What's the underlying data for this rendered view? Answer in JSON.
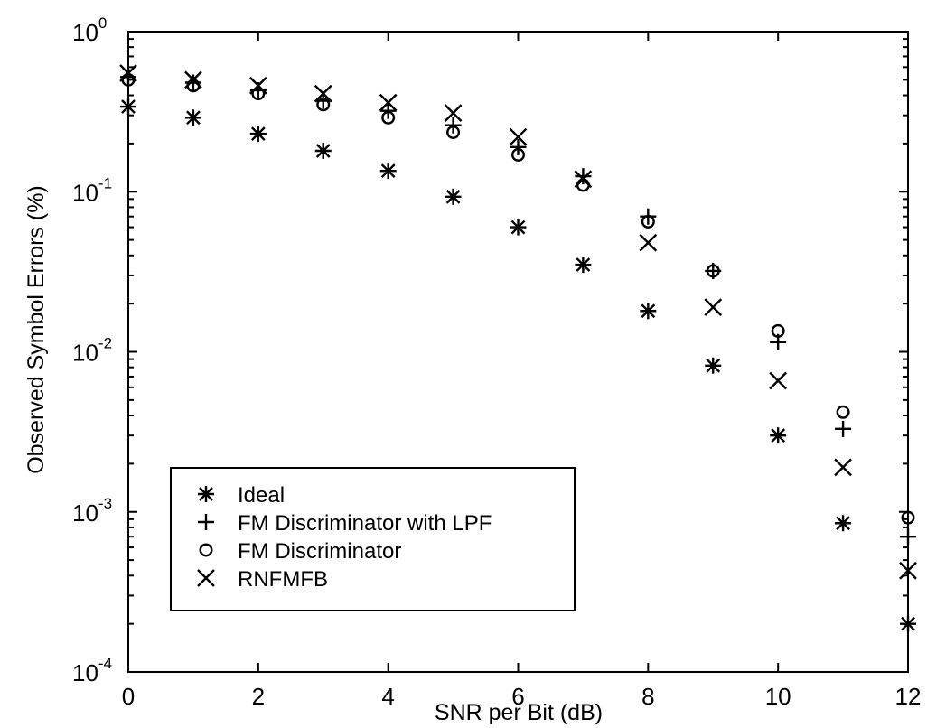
{
  "chart_data": {
    "type": "scatter",
    "title": "",
    "xlabel": "SNR per Bit (dB)",
    "ylabel": "Observed Symbol Errors (%)",
    "xlim": [
      0,
      12
    ],
    "ylim": [
      0.0001,
      1
    ],
    "yscale": "log",
    "xticks": [
      "0",
      "2",
      "4",
      "6",
      "8",
      "10",
      "12"
    ],
    "yticks": [
      {
        "base": "10",
        "exp": "0"
      },
      {
        "base": "10",
        "exp": "-1"
      },
      {
        "base": "10",
        "exp": "-2"
      },
      {
        "base": "10",
        "exp": "-3"
      },
      {
        "base": "10",
        "exp": "-4"
      }
    ],
    "legend_position": "lower-left",
    "series": [
      {
        "name": "Ideal",
        "marker": "asterisk",
        "x": [
          0,
          1,
          2,
          3,
          4,
          5,
          6,
          7,
          8,
          9,
          10,
          11,
          12
        ],
        "y": [
          0.34,
          0.29,
          0.23,
          0.18,
          0.135,
          0.093,
          0.06,
          0.035,
          0.018,
          0.0082,
          0.003,
          0.00085,
          0.0002
        ]
      },
      {
        "name": "FM Discriminator with LPF",
        "marker": "plus",
        "x": [
          0,
          1,
          2,
          3,
          4,
          5,
          6,
          7,
          8,
          9,
          10,
          11,
          12
        ],
        "y": [
          0.52,
          0.48,
          0.43,
          0.37,
          0.32,
          0.26,
          0.19,
          0.125,
          0.07,
          0.032,
          0.0115,
          0.0033,
          0.0007
        ]
      },
      {
        "name": "FM Discriminator",
        "marker": "circle",
        "x": [
          0,
          1,
          2,
          3,
          4,
          5,
          6,
          7,
          8,
          9,
          10,
          11,
          12
        ],
        "y": [
          0.5,
          0.46,
          0.41,
          0.35,
          0.29,
          0.235,
          0.17,
          0.11,
          0.065,
          0.032,
          0.0135,
          0.0042,
          0.00092
        ]
      },
      {
        "name": "RNFMFB",
        "marker": "x",
        "x": [
          0,
          1,
          2,
          3,
          4,
          5,
          6,
          7,
          8,
          9,
          10,
          11,
          12
        ],
        "y": [
          0.55,
          0.5,
          0.46,
          0.41,
          0.36,
          0.31,
          0.22,
          0.12,
          0.048,
          0.019,
          0.0066,
          0.0019,
          0.00043
        ]
      }
    ]
  }
}
